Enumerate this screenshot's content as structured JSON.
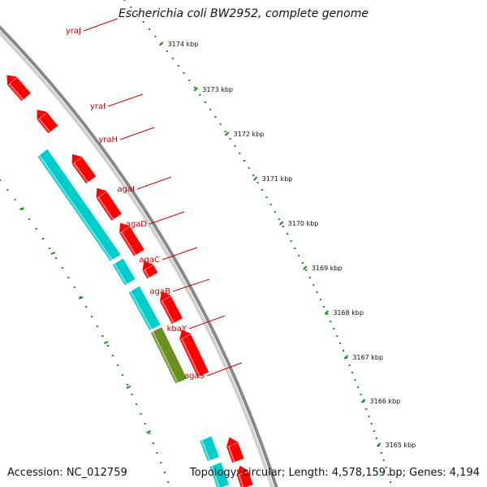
{
  "title": "Escherichia coli BW2952, complete genome",
  "footer": {
    "accession": "Accession: NC_012759",
    "summary": "Topology: circular; Length: 4,578,159 bp; Genes: 4,194"
  },
  "colors": {
    "forward_gene": "#ff0000",
    "reverse_gene": "#ff0000",
    "operon_cds": "#00cccc",
    "olive_cds": "#6b8e23",
    "backbone": "#888888",
    "gc_ticks": "#1a8c1a",
    "labels": "#cc0000"
  },
  "scale_ticks": [
    {
      "label": "3174 kbp"
    },
    {
      "label": "3173 kbp"
    },
    {
      "label": "3172 kbp"
    },
    {
      "label": "3171 kbp"
    },
    {
      "label": "3170 kbp"
    },
    {
      "label": "3169 kbp"
    },
    {
      "label": "3168 kbp"
    },
    {
      "label": "3167 kbp"
    },
    {
      "label": "3166 kbp"
    },
    {
      "label": "3165 kbp"
    }
  ],
  "genes": [
    {
      "name": "yraJ"
    },
    {
      "name": "yraI"
    },
    {
      "name": "yraH"
    },
    {
      "name": "agaI"
    },
    {
      "name": "agaD"
    },
    {
      "name": "agaC"
    },
    {
      "name": "agaB"
    },
    {
      "name": "kbaY"
    },
    {
      "name": "agaS"
    }
  ]
}
